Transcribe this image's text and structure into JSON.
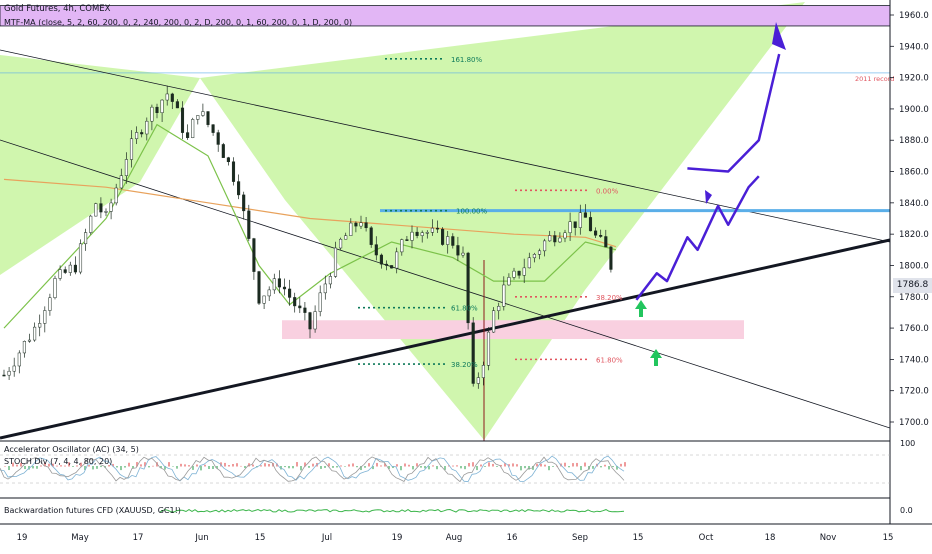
{
  "header": {
    "title": "Gold Futures, 4h, COMEX",
    "indicator": "MTF-MA (close, 5, 2, 60, 200, 0, 2, 240, 200, 0, 2, D, 200, 0, 1, 60, 200, 0, 1, D, 200, 0)"
  },
  "panes": {
    "oscillator_label_1": "Accelerator Oscillator (AC) (34, 5)",
    "oscillator_label_2": "STOCH Div (7, 4, 4, 80, 20)",
    "backwardation_label": "Backwardation futures CFD (XAUUSD, GC1!)",
    "osc_axis_label": "100",
    "backwardation_axis_label": "0.0"
  },
  "colors": {
    "green_pattern": "#c8f5a0",
    "resistance_band": "#e2b6f5",
    "support_band": "#f9d0e0",
    "blue_line": "#5aaee8",
    "projection": "#4a1fd6",
    "up_arrow": "#22c55e",
    "ma_green": "#7cc24a",
    "ma_orange": "#e8a25c",
    "candle": "#1b2a20",
    "fib_green": "#0e7a5a",
    "fib_red": "#e0555f"
  },
  "chart_data": {
    "type": "candlestick",
    "title": "Gold Futures, 4h, COMEX",
    "current_price": "1786.8",
    "ylim": [
      1685,
      1970
    ],
    "y_ticks": [
      "1700.0",
      "1720.0",
      "1740.0",
      "1760.0",
      "1780.0",
      "1800.0",
      "1820.0",
      "1840.0",
      "1860.0",
      "1880.0",
      "1900.0",
      "1920.0",
      "1940.0",
      "1960.0"
    ],
    "x_ticks": [
      "19",
      "May",
      "17",
      "Jun",
      "15",
      "Jul",
      "19",
      "Aug",
      "16",
      "Sep",
      "15",
      "Oct",
      "18",
      "Nov",
      "15"
    ],
    "price_path": [
      [
        0,
        1730
      ],
      [
        6,
        1760
      ],
      [
        10,
        1790
      ],
      [
        14,
        1800
      ],
      [
        18,
        1840
      ],
      [
        20,
        1830
      ],
      [
        24,
        1870
      ],
      [
        28,
        1895
      ],
      [
        32,
        1910
      ],
      [
        33,
        1905
      ],
      [
        36,
        1880
      ],
      [
        38,
        1900
      ],
      [
        42,
        1880
      ],
      [
        46,
        1850
      ],
      [
        48,
        1815
      ],
      [
        50,
        1780
      ],
      [
        54,
        1790
      ],
      [
        58,
        1770
      ],
      [
        60,
        1760
      ],
      [
        62,
        1780
      ],
      [
        66,
        1815
      ],
      [
        70,
        1830
      ],
      [
        72,
        1810
      ],
      [
        76,
        1800
      ],
      [
        80,
        1825
      ],
      [
        84,
        1820
      ],
      [
        88,
        1815
      ],
      [
        90,
        1805
      ],
      [
        92,
        1720
      ],
      [
        94,
        1740
      ],
      [
        96,
        1770
      ],
      [
        98,
        1785
      ],
      [
        102,
        1800
      ],
      [
        106,
        1815
      ],
      [
        110,
        1825
      ],
      [
        114,
        1830
      ],
      [
        116,
        1818
      ],
      [
        118,
        1810
      ],
      [
        120,
        1790
      ]
    ],
    "ma_green": [
      [
        0,
        1760
      ],
      [
        20,
        1830
      ],
      [
        30,
        1890
      ],
      [
        40,
        1870
      ],
      [
        50,
        1800
      ],
      [
        56,
        1775
      ],
      [
        64,
        1795
      ],
      [
        76,
        1815
      ],
      [
        88,
        1805
      ],
      [
        96,
        1790
      ],
      [
        106,
        1790
      ],
      [
        114,
        1815
      ],
      [
        120,
        1810
      ]
    ],
    "ma_orange": [
      [
        0,
        1855
      ],
      [
        20,
        1850
      ],
      [
        40,
        1840
      ],
      [
        60,
        1830
      ],
      [
        80,
        1825
      ],
      [
        100,
        1820
      ],
      [
        114,
        1818
      ],
      [
        120,
        1812
      ]
    ],
    "levels": [
      {
        "label": "2011 record",
        "price": 1923,
        "color": "#4fb8d8"
      },
      {
        "label": "Resistance zone",
        "price_top": 1966,
        "price_bottom": 1953
      },
      {
        "label": "Support zone",
        "price_top": 1765,
        "price_bottom": 1753
      },
      {
        "label": "Breakout line",
        "price": 1835
      }
    ],
    "fibonacci": [
      {
        "label": "161.80%",
        "price": 1932,
        "color": "green"
      },
      {
        "label": "100.00%",
        "price": 1835,
        "color": "green"
      },
      {
        "label": "61.80%",
        "price": 1773,
        "color": "green"
      },
      {
        "label": "38.20%",
        "price": 1737,
        "color": "green"
      },
      {
        "label": "0.00%",
        "price": 1848,
        "color": "red"
      },
      {
        "label": "38.20%",
        "price": 1780,
        "color": "red"
      },
      {
        "label": "61.80%",
        "price": 1740,
        "color": "red"
      }
    ],
    "projection_path": [
      [
        124,
        1778
      ],
      [
        128,
        1795
      ],
      [
        130,
        1790
      ],
      [
        134,
        1818
      ],
      [
        136,
        1810
      ],
      [
        140,
        1838
      ],
      [
        142,
        1826
      ],
      [
        146,
        1850
      ],
      [
        148,
        1857
      ]
    ],
    "projection_path_2": [
      [
        134,
        1862
      ],
      [
        142,
        1860
      ],
      [
        148,
        1880
      ],
      [
        152,
        1935
      ]
    ]
  }
}
